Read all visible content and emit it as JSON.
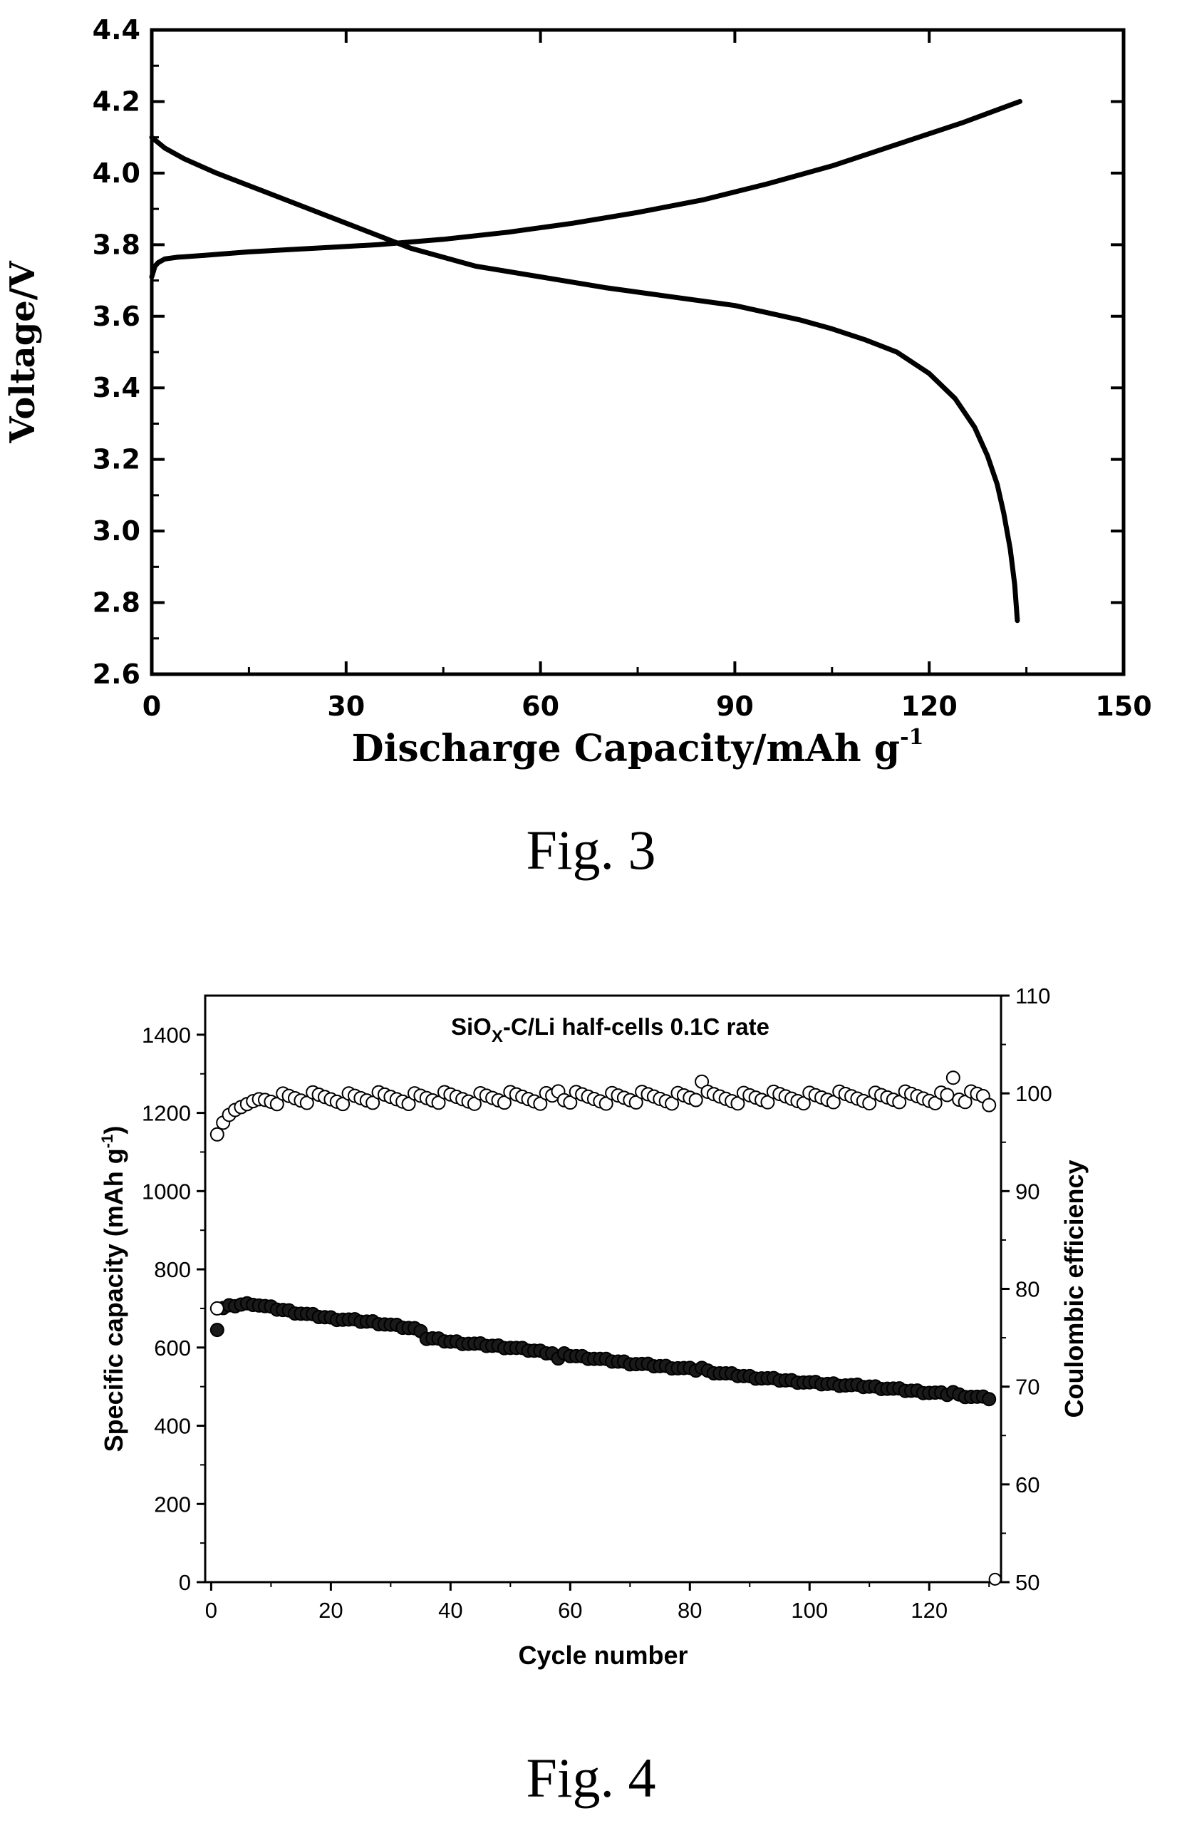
{
  "figures": [
    {
      "caption": "Fig. 3",
      "chart_data": {
        "type": "line",
        "xlabel": "Discharge Capacity/mAh g",
        "xlabel_superscript": "-1",
        "ylabel": "Voltage/V",
        "xlim": [
          0,
          150
        ],
        "ylim": [
          2.6,
          4.4
        ],
        "xticks": [
          "0",
          "30",
          "60",
          "90",
          "120",
          "150"
        ],
        "yticks": [
          "2.6",
          "2.8",
          "3.0",
          "3.2",
          "3.4",
          "3.6",
          "3.8",
          "4.0",
          "4.2",
          "4.4"
        ],
        "grid": false,
        "legend": "none",
        "series": [
          {
            "x": [
              0,
              0.5,
              1,
              2,
              4,
              8,
              15,
              25,
              35,
              45,
              55,
              65,
              75,
              85,
              95,
              105,
              115,
              125,
              134
            ],
            "y": [
              3.71,
              3.74,
              3.75,
              3.76,
              3.765,
              3.77,
              3.78,
              3.79,
              3.8,
              3.815,
              3.835,
              3.86,
              3.89,
              3.925,
              3.97,
              4.02,
              4.08,
              4.14,
              4.2
            ]
          },
          {
            "x": [
              0,
              2,
              5,
              10,
              20,
              30,
              40,
              50,
              60,
              70,
              80,
              90,
              100,
              105,
              110,
              115,
              120,
              124,
              127,
              129,
              130.5,
              131.5,
              132.5,
              133.2,
              133.6
            ],
            "y": [
              4.1,
              4.07,
              4.04,
              4.0,
              3.93,
              3.86,
              3.79,
              3.74,
              3.71,
              3.68,
              3.655,
              3.63,
              3.59,
              3.565,
              3.535,
              3.5,
              3.44,
              3.37,
              3.29,
              3.21,
              3.13,
              3.05,
              2.95,
              2.85,
              2.75
            ]
          }
        ]
      }
    },
    {
      "caption": "Fig. 4",
      "chart_data": {
        "type": "scatter",
        "title_parts": {
          "pre": "SiO",
          "sub": "X",
          "post": "-C/Li half-cells  0.1C rate"
        },
        "xlabel": "Cycle number",
        "ylabel": "Specific capacity (mAh g",
        "ylabel_superscript": "-1",
        "ylabel_end": ")",
        "y2label": "Coulombic efficiency",
        "xlim": [
          -1,
          132
        ],
        "ylim": [
          0,
          1500
        ],
        "y2lim": [
          50,
          110
        ],
        "xticks": [
          "0",
          "20",
          "40",
          "60",
          "80",
          "100",
          "120"
        ],
        "yticks": [
          "0",
          "200",
          "400",
          "600",
          "800",
          "1000",
          "1200",
          "1400"
        ],
        "y2ticks": [
          "50",
          "60",
          "70",
          "80",
          "90",
          "100",
          "110"
        ],
        "grid": false,
        "legend": "none",
        "series": [
          {
            "axis": "left",
            "marker": "filled-circle",
            "capacity_profile": [
              [
                1,
                645
              ],
              [
                2,
                700
              ],
              [
                3,
                705
              ],
              [
                5,
                710
              ],
              [
                7,
                712
              ],
              [
                9,
                705
              ],
              [
                14,
                690
              ],
              [
                20,
                675
              ],
              [
                27,
                665
              ],
              [
                35,
                645
              ],
              [
                36,
                625
              ],
              [
                40,
                615
              ],
              [
                50,
                600
              ],
              [
                60,
                580
              ],
              [
                70,
                560
              ],
              [
                80,
                545
              ],
              [
                90,
                525
              ],
              [
                100,
                510
              ],
              [
                110,
                500
              ],
              [
                120,
                485
              ],
              [
                125,
                478
              ],
              [
                130,
                470
              ]
            ],
            "outliers": [
              [
                1,
                645
              ],
              [
                36,
                622
              ],
              [
                58,
                572
              ],
              [
                82,
                548
              ],
              [
                124,
                486
              ]
            ]
          },
          {
            "axis": "right",
            "marker": "open-circle",
            "efficiency_profile": [
              [
                1,
                95.8
              ],
              [
                2,
                97.0
              ],
              [
                3,
                97.8
              ],
              [
                4,
                98.3
              ],
              [
                5,
                98.6
              ],
              [
                6,
                98.9
              ],
              [
                7,
                99.2
              ],
              [
                8,
                99.4
              ],
              [
                10,
                99.5
              ],
              [
                130,
                99.6
              ]
            ],
            "outliers": [
              [
                82,
                101.2
              ],
              [
                124,
                101.6
              ],
              [
                58,
                100.2
              ],
              [
                130,
                98.8
              ]
            ],
            "last_point": [
              131,
              50.3
            ]
          }
        ]
      }
    }
  ]
}
